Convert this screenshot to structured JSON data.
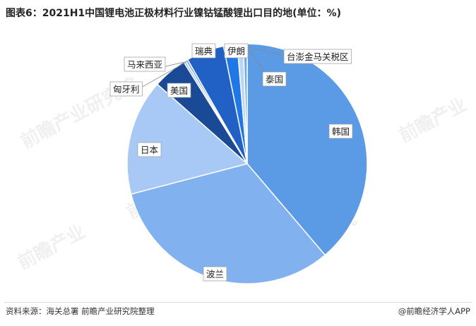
{
  "title": "图表6：2021H1中国锂电池正极材料行业镍钴锰酸锂出口目的地(单位：%)",
  "footer": {
    "source": "资料来源：海关总署 前瞻产业研究院整理",
    "brand": "@前瞻经济学人APP"
  },
  "chart_data": {
    "type": "pie",
    "title": "图表6：2021H1中国锂电池正极材料行业镍钴锰酸锂出口目的地(单位：%)",
    "slices": [
      {
        "label": "韩国",
        "value": 38.0,
        "color": "#5b9be6"
      },
      {
        "label": "波兰",
        "value": 31.5,
        "color": "#82b1ef"
      },
      {
        "label": "日本",
        "value": 15.3,
        "color": "#a8c8f5"
      },
      {
        "label": "美国",
        "value": 4.5,
        "color": "#1a4a96"
      },
      {
        "label": "匈牙利",
        "value": 0.3,
        "color": "#9cc0f2"
      },
      {
        "label": "马来西亚",
        "value": 0.3,
        "color": "#6fa3ea"
      },
      {
        "label": "瑞典",
        "value": 5.0,
        "color": "#2160c4"
      },
      {
        "label": "伊朗",
        "value": 1.8,
        "color": "#1f78e6"
      },
      {
        "label": "台澎金马关税区",
        "value": 0.8,
        "color": "#bcd6f7"
      },
      {
        "label": "泰国",
        "value": 0.5,
        "color": "#6ea8ee"
      }
    ]
  }
}
